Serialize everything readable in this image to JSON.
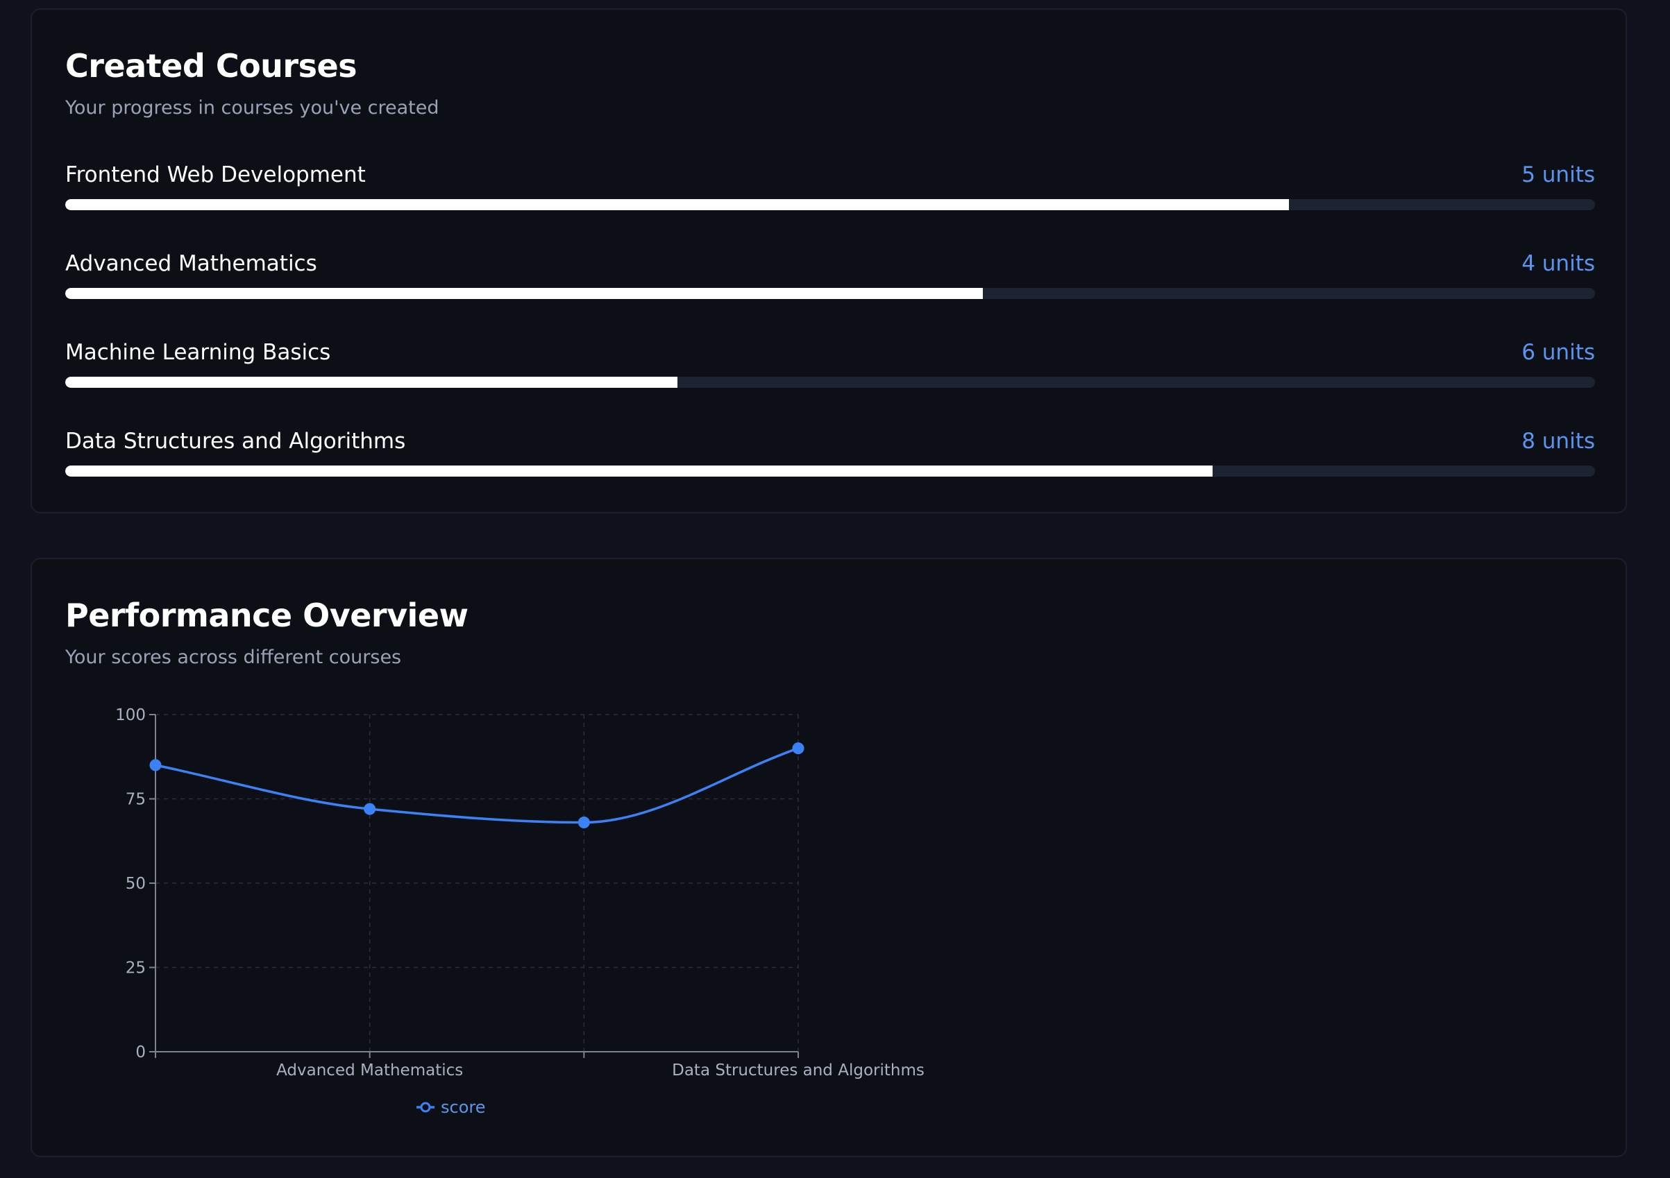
{
  "created_courses": {
    "title": "Created Courses",
    "subtitle": "Your progress in courses you've created",
    "courses": [
      {
        "name": "Frontend Web Development",
        "units": "5 units",
        "progress": 0.8
      },
      {
        "name": "Advanced Mathematics",
        "units": "4 units",
        "progress": 0.6
      },
      {
        "name": "Machine Learning Basics",
        "units": "6 units",
        "progress": 0.4
      },
      {
        "name": "Data Structures and Algorithms",
        "units": "8 units",
        "progress": 0.75
      }
    ],
    "colors": {
      "progress_fill": "#ffffff",
      "progress_track": "#1c2433",
      "units_accent": "#5b95ee"
    }
  },
  "performance": {
    "title": "Performance Overview",
    "subtitle": "Your scores across different courses"
  },
  "chart_data": {
    "type": "line",
    "categories": [
      "Frontend Web Development",
      "Advanced Mathematics",
      "Machine Learning Basics",
      "Data Structures and Algorithms"
    ],
    "visible_x_tick_labels": [
      "Advanced Mathematics",
      "Data Structures and Algorithms"
    ],
    "series": [
      {
        "name": "score",
        "values": [
          85,
          72,
          68,
          90
        ],
        "color": "#3b82f6"
      }
    ],
    "ylim": [
      0,
      100
    ],
    "y_ticks": [
      0,
      25,
      50,
      75,
      100
    ],
    "curve": "smooth",
    "grid": true,
    "legend": "bottom-center"
  }
}
